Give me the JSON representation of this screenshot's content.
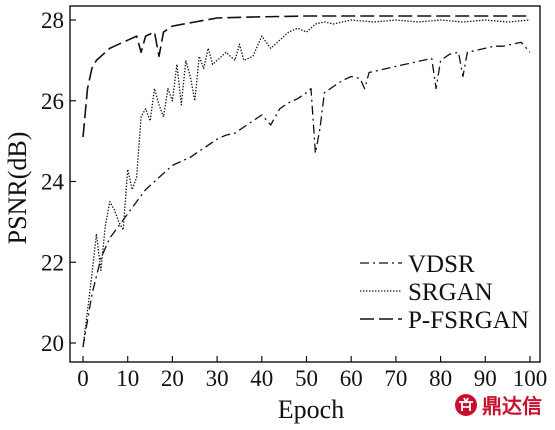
{
  "chart_data": {
    "type": "line",
    "title": "",
    "xlabel": "Epoch",
    "ylabel": "PSNR(dB)",
    "xlim": [
      0,
      100
    ],
    "ylim": [
      19.5,
      28.2
    ],
    "xticks": [
      0,
      10,
      20,
      30,
      40,
      50,
      60,
      70,
      80,
      90,
      100
    ],
    "yticks": [
      20,
      22,
      24,
      26,
      28
    ],
    "grid": false,
    "legend_position": "bottom-right",
    "series": [
      {
        "name": "VDSR",
        "dash": "dash-dot",
        "x": [
          0,
          2,
          4,
          6,
          8,
          10,
          12,
          14,
          16,
          18,
          20,
          22,
          24,
          26,
          28,
          30,
          32,
          34,
          36,
          38,
          40,
          42,
          44,
          46,
          48,
          50,
          51,
          52,
          53,
          54,
          56,
          58,
          60,
          62,
          63,
          64,
          66,
          68,
          70,
          72,
          74,
          76,
          78,
          79,
          80,
          82,
          84,
          85,
          86,
          88,
          90,
          92,
          94,
          96,
          98,
          100
        ],
        "y": [
          19.9,
          21.2,
          22.1,
          22.6,
          22.9,
          23.2,
          23.5,
          23.8,
          24.0,
          24.2,
          24.4,
          24.5,
          24.6,
          24.75,
          24.9,
          25.05,
          25.15,
          25.2,
          25.35,
          25.5,
          25.65,
          25.4,
          25.8,
          25.95,
          26.05,
          26.2,
          26.3,
          24.7,
          25.3,
          26.2,
          26.35,
          26.5,
          26.6,
          26.55,
          26.3,
          26.7,
          26.75,
          26.8,
          26.85,
          26.9,
          26.95,
          27.0,
          27.05,
          26.3,
          27.0,
          27.15,
          27.2,
          26.6,
          27.2,
          27.25,
          27.3,
          27.35,
          27.35,
          27.4,
          27.45,
          27.2
        ]
      },
      {
        "name": "SRGAN",
        "dash": "dotted",
        "x": [
          0,
          1,
          2,
          3,
          4,
          5,
          6,
          7,
          8,
          9,
          10,
          11,
          12,
          13,
          14,
          15,
          16,
          17,
          18,
          19,
          20,
          21,
          22,
          23,
          24,
          25,
          26,
          27,
          28,
          29,
          30,
          32,
          34,
          35,
          36,
          38,
          40,
          42,
          44,
          46,
          48,
          50,
          52,
          54,
          56,
          58,
          60,
          65,
          70,
          75,
          80,
          85,
          90,
          95,
          100
        ],
        "y": [
          19.9,
          20.8,
          21.7,
          22.7,
          21.8,
          22.9,
          23.5,
          23.3,
          23.0,
          22.8,
          24.3,
          23.8,
          24.1,
          25.6,
          25.8,
          25.5,
          26.3,
          25.9,
          25.6,
          26.3,
          26.0,
          26.9,
          25.9,
          27.0,
          26.6,
          26.0,
          27.1,
          26.8,
          27.3,
          26.9,
          27.0,
          27.2,
          27.0,
          27.4,
          27.0,
          27.1,
          27.6,
          27.3,
          27.5,
          27.7,
          27.8,
          27.7,
          27.9,
          27.95,
          27.9,
          27.95,
          28.0,
          27.95,
          28.0,
          27.95,
          28.0,
          27.95,
          28.0,
          27.95,
          28.0
        ]
      },
      {
        "name": "P-FSRGAN",
        "dash": "long-dash",
        "x": [
          0,
          1,
          2,
          3,
          4,
          6,
          8,
          10,
          12,
          13,
          14,
          16,
          17,
          18,
          20,
          25,
          30,
          40,
          50,
          60,
          70,
          80,
          90,
          100
        ],
        "y": [
          25.1,
          26.3,
          26.8,
          27.0,
          27.1,
          27.3,
          27.4,
          27.5,
          27.6,
          27.2,
          27.6,
          27.7,
          27.1,
          27.7,
          27.85,
          27.95,
          28.05,
          28.08,
          28.1,
          28.1,
          28.1,
          28.1,
          28.1,
          28.1
        ]
      }
    ]
  },
  "watermark": {
    "logo_icon": "ding-logo-icon",
    "text": "鼎达信",
    "color": "#c8102e"
  }
}
